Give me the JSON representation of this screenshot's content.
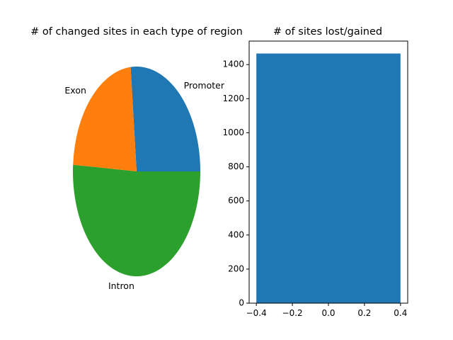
{
  "colors": {
    "background": "#ffffff",
    "pie_colors": [
      "#1f77b4",
      "#ff7f0e",
      "#2ca02c"
    ],
    "bar_color": "#1f77b4",
    "axis_color": "#000000"
  },
  "chart_data": [
    {
      "type": "pie",
      "title": "# of changed sites in each type of region",
      "labels": [
        "Promoter",
        "Exon",
        "Intron"
      ],
      "values": [
        26.5,
        22.5,
        51.0
      ],
      "colors": [
        "#1f77b4",
        "#ff7f0e",
        "#2ca02c"
      ],
      "start_angle": 0,
      "direction": "counterclockwise"
    },
    {
      "type": "bar",
      "title": "# of sites lost/gained",
      "x": [
        0
      ],
      "values": [
        1465
      ],
      "bar_width": 0.8,
      "color": "#1f77b4",
      "xlim": [
        -0.44,
        0.44
      ],
      "ylim": [
        0,
        1538
      ],
      "xticks": [
        -0.4,
        -0.2,
        0.0,
        0.2,
        0.4
      ],
      "xtick_labels": [
        "−0.4",
        "−0.2",
        "0.0",
        "0.2",
        "0.4"
      ],
      "yticks": [
        0,
        200,
        400,
        600,
        800,
        1000,
        1200,
        1400
      ],
      "ytick_labels": [
        "0",
        "200",
        "400",
        "600",
        "800",
        "1000",
        "1200",
        "1400"
      ],
      "grid": false
    }
  ]
}
